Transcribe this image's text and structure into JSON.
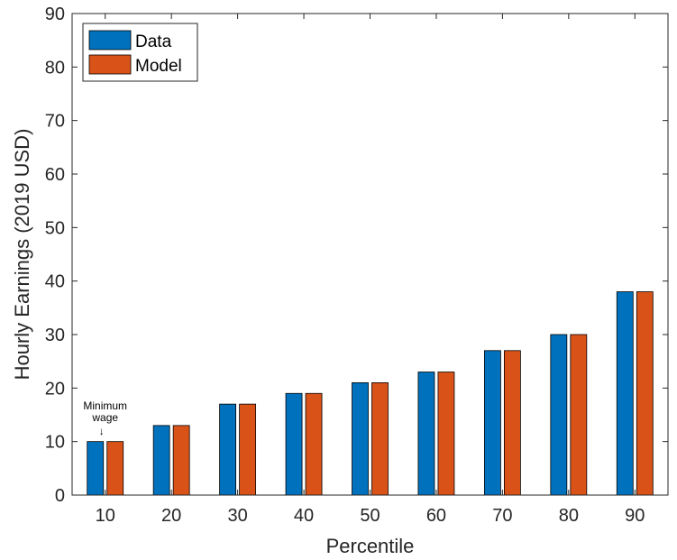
{
  "chart_data": {
    "type": "bar",
    "xlabel": "Percentile",
    "ylabel": "Hourly Earnings (2019 USD)",
    "categories": [
      "10",
      "20",
      "30",
      "40",
      "50",
      "60",
      "70",
      "80",
      "90"
    ],
    "series": [
      {
        "name": "Data",
        "color": "#0072BD",
        "values": [
          10,
          13,
          17,
          19,
          21,
          23,
          27,
          30,
          38
        ]
      },
      {
        "name": "Model",
        "color": "#D95319",
        "values": [
          10,
          13,
          17,
          19,
          21,
          23,
          27,
          30,
          38
        ]
      }
    ],
    "ylim": [
      0,
      90
    ],
    "yticks": [
      "0",
      "10",
      "20",
      "30",
      "40",
      "50",
      "60",
      "70",
      "80",
      "90"
    ],
    "grid": false,
    "legend_position": "top-left",
    "annotation": {
      "lines": [
        "Minimum",
        "wage"
      ],
      "arrow": "↓",
      "category": "10"
    }
  }
}
